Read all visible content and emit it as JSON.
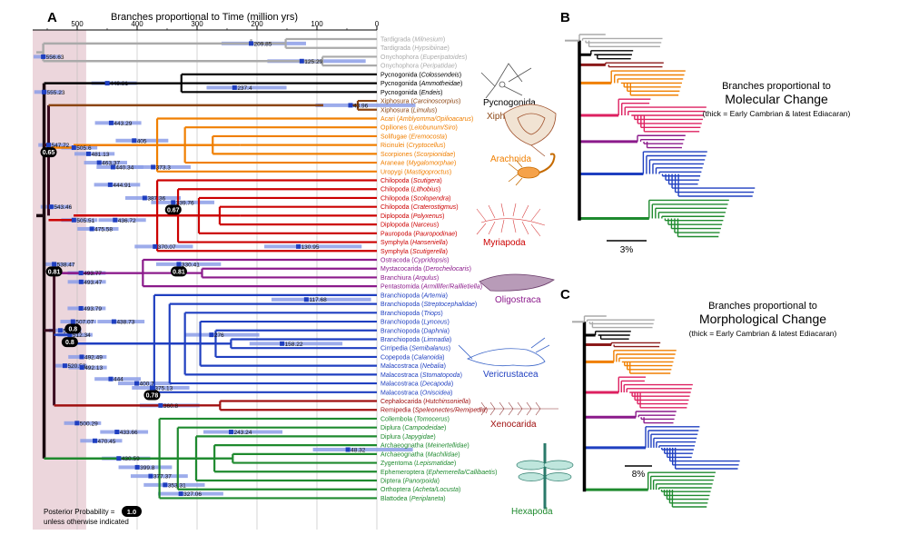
{
  "panel_a": {
    "letter": "A",
    "axis_title": "Branches proportional to Time (million yrs)",
    "ticks": [
      "500",
      "400",
      "300",
      "200",
      "100",
      "0"
    ],
    "taxa": [
      {
        "name": "Tardigrada",
        "genus": "Milnesium",
        "color": "#aaaaaa"
      },
      {
        "name": "Tardigrada",
        "genus": "Hypsibiinae",
        "color": "#aaaaaa"
      },
      {
        "name": "Onychophora",
        "genus": "Euperipatoides",
        "color": "#aaaaaa"
      },
      {
        "name": "Onychophora",
        "genus": "Peripatidae",
        "color": "#aaaaaa"
      },
      {
        "name": "Pycnogonida",
        "genus": "Colossendeis",
        "color": "#000000"
      },
      {
        "name": "Pycnogonida",
        "genus": "Ammotheidae",
        "color": "#000000"
      },
      {
        "name": "Pycnogonida",
        "genus": "Endeis",
        "color": "#000000"
      },
      {
        "name": "Xiphosura",
        "genus": "Carcinoscorpius",
        "color": "#8b4513"
      },
      {
        "name": "Xiphosura",
        "genus": "Limulus",
        "color": "#8b4513"
      },
      {
        "name": "Acari",
        "genus": "Amblyomma/Opilioacarus",
        "color": "#f07f00"
      },
      {
        "name": "Opiliones",
        "genus": "Leiobunum/Siro",
        "color": "#f07f00"
      },
      {
        "name": "Solifugae",
        "genus": "Eremocosta",
        "color": "#f07f00"
      },
      {
        "name": "Ricinulei",
        "genus": "Cryptocellus",
        "color": "#f07f00"
      },
      {
        "name": "Scorpiones",
        "genus": "Scorpionidae",
        "color": "#f07f00"
      },
      {
        "name": "Araneae",
        "genus": "Mygalomorphae",
        "color": "#f07f00"
      },
      {
        "name": "Uropygi",
        "genus": "Mastigoproctus",
        "color": "#f07f00"
      },
      {
        "name": "Chilopoda",
        "genus": "Scutigera",
        "color": "#cc0000"
      },
      {
        "name": "Chilopoda",
        "genus": "Lithobius",
        "color": "#cc0000"
      },
      {
        "name": "Chilopoda",
        "genus": "Scolopendra",
        "color": "#cc0000"
      },
      {
        "name": "Chilopoda",
        "genus": "Craterostigmus",
        "color": "#cc0000"
      },
      {
        "name": "Diplopoda",
        "genus": "Polyxenus",
        "color": "#cc0000"
      },
      {
        "name": "Diplopoda",
        "genus": "Narceus",
        "color": "#cc0000"
      },
      {
        "name": "Pauropoda",
        "genus": "Pauropodinae",
        "color": "#cc0000"
      },
      {
        "name": "Symphyla",
        "genus": "Hanseniella",
        "color": "#cc0000"
      },
      {
        "name": "Symphyla",
        "genus": "Scutigerella",
        "color": "#cc0000"
      },
      {
        "name": "Ostracoda",
        "genus": "Cypridopsis",
        "color": "#8b1a8b"
      },
      {
        "name": "Mystacocarida",
        "genus": "Derocheilocaris",
        "color": "#8b1a8b"
      },
      {
        "name": "Branchiura",
        "genus": "Argulus",
        "color": "#8b1a8b"
      },
      {
        "name": "Pentastomida",
        "genus": "Armillifer/Raillietiella",
        "color": "#8b1a8b"
      },
      {
        "name": "Branchiopoda",
        "genus": "Artemia",
        "color": "#1f3fc0"
      },
      {
        "name": "Branchiopoda",
        "genus": "Streptocephalidae",
        "color": "#1f3fc0"
      },
      {
        "name": "Branchiopoda",
        "genus": "Triops",
        "color": "#1f3fc0"
      },
      {
        "name": "Branchiopoda",
        "genus": "Lynceus",
        "color": "#1f3fc0"
      },
      {
        "name": "Branchiopoda",
        "genus": "Daphnia",
        "color": "#1f3fc0"
      },
      {
        "name": "Branchiopoda",
        "genus": "Limnadia",
        "color": "#1f3fc0"
      },
      {
        "name": "Cirripedia",
        "genus": "Semibalanus",
        "color": "#1f3fc0"
      },
      {
        "name": "Copepoda",
        "genus": "Calanoida",
        "color": "#1f3fc0"
      },
      {
        "name": "Malacostraca",
        "genus": "Nebalia",
        "color": "#1f3fc0"
      },
      {
        "name": "Malacostraca",
        "genus": "Stomatopoda",
        "color": "#1f3fc0"
      },
      {
        "name": "Malacostraca",
        "genus": "Decapoda",
        "color": "#1f3fc0"
      },
      {
        "name": "Malacostraca",
        "genus": "Oniscidea",
        "color": "#1f3fc0"
      },
      {
        "name": "Cephalocarida",
        "genus": "Hutchinsoniella",
        "color": "#a01010"
      },
      {
        "name": "Remipedia",
        "genus": "Speleonectes/Remipedia",
        "color": "#a01010"
      },
      {
        "name": "Collembola",
        "genus": "Tomocerus",
        "color": "#1e8a2e"
      },
      {
        "name": "Diplura",
        "genus": "Campodeidae",
        "color": "#1e8a2e"
      },
      {
        "name": "Diplura",
        "genus": "Japygidae",
        "color": "#1e8a2e"
      },
      {
        "name": "Archaeognatha",
        "genus": "Meinertellidae",
        "color": "#1e8a2e"
      },
      {
        "name": "Archaeognatha",
        "genus": "Machilidae",
        "color": "#1e8a2e"
      },
      {
        "name": "Zygentoma",
        "genus": "Lepismatidae",
        "color": "#1e8a2e"
      },
      {
        "name": "Ephemeroptera",
        "genus": "Ephemerella/Callibaetis",
        "color": "#1e8a2e"
      },
      {
        "name": "Diptera",
        "genus": "Panorpoida",
        "color": "#1e8a2e"
      },
      {
        "name": "Orthoptera",
        "genus": "Acheta/Locusta",
        "color": "#1e8a2e"
      },
      {
        "name": "Blattodea",
        "genus": "Periplaneta",
        "color": "#1e8a2e"
      }
    ],
    "nodes": [
      {
        "label": "556.63",
        "age": 556.63,
        "row": 2
      },
      {
        "label": "555.23",
        "age": 555.23,
        "row": 6
      },
      {
        "label": "547.72",
        "age": 547.72,
        "row": 12
      },
      {
        "label": "543.46",
        "age": 543.46,
        "row": 19
      },
      {
        "label": "538.47",
        "age": 538.47,
        "row": 25.5
      },
      {
        "label": "528.14",
        "age": 528.14,
        "row": 33
      },
      {
        "label": "520.53",
        "age": 520.53,
        "row": 37
      },
      {
        "label": "512.34",
        "age": 512.34,
        "row": 33.5
      },
      {
        "label": "507.07",
        "age": 507.07,
        "row": 32
      },
      {
        "label": "505.6",
        "age": 505.6,
        "row": 12.3
      },
      {
        "label": "505.51",
        "age": 505.51,
        "row": 20.5
      },
      {
        "label": "500.29",
        "age": 500.29,
        "row": 43.5
      },
      {
        "label": "493.79",
        "age": 493.79,
        "row": 30.5
      },
      {
        "label": "493.77",
        "age": 493.77,
        "row": 26.5
      },
      {
        "label": "493.47",
        "age": 493.47,
        "row": 27.5
      },
      {
        "label": "492.49",
        "age": 492.49,
        "row": 36
      },
      {
        "label": "492.13",
        "age": 492.13,
        "row": 37.2
      },
      {
        "label": "481.13",
        "age": 481.13,
        "row": 13
      },
      {
        "label": "475.58",
        "age": 475.58,
        "row": 21.5
      },
      {
        "label": "470.45",
        "age": 470.45,
        "row": 45.5
      },
      {
        "label": "463.37",
        "age": 463.37,
        "row": 14
      },
      {
        "label": "449.81",
        "age": 449.81,
        "row": 5
      },
      {
        "label": "444.91",
        "age": 444.91,
        "row": 16.5
      },
      {
        "label": "444",
        "age": 444,
        "row": 38.5
      },
      {
        "label": "443.29",
        "age": 443.29,
        "row": 9.5
      },
      {
        "label": "440.34",
        "age": 440.34,
        "row": 14.5
      },
      {
        "label": "438.73",
        "age": 438.73,
        "row": 32
      },
      {
        "label": "436.72",
        "age": 436.72,
        "row": 20.5
      },
      {
        "label": "433.66",
        "age": 433.66,
        "row": 44.5
      },
      {
        "label": "430.59",
        "age": 430.59,
        "row": 47.5
      },
      {
        "label": "405",
        "age": 405,
        "row": 11.5
      },
      {
        "label": "400.7",
        "age": 400.7,
        "row": 39
      },
      {
        "label": "399.8",
        "age": 399.8,
        "row": 48.5
      },
      {
        "label": "387.36",
        "age": 387.36,
        "row": 18
      },
      {
        "label": "377.37",
        "age": 377.37,
        "row": 49.5
      },
      {
        "label": "375.13",
        "age": 375.13,
        "row": 39.5
      },
      {
        "label": "373.3",
        "age": 373.3,
        "row": 14.5
      },
      {
        "label": "370.07",
        "age": 370.07,
        "row": 23.5
      },
      {
        "label": "360.8",
        "age": 360.8,
        "row": 41.5
      },
      {
        "label": "353.31",
        "age": 353.31,
        "row": 50.5
      },
      {
        "label": "339.76",
        "age": 339.76,
        "row": 18.5
      },
      {
        "label": "330.41",
        "age": 330.41,
        "row": 25.5
      },
      {
        "label": "327.06",
        "age": 327.06,
        "row": 51.5
      },
      {
        "label": "276",
        "age": 276,
        "row": 33.5
      },
      {
        "label": "243.24",
        "age": 243.24,
        "row": 44.5
      },
      {
        "label": "237.4",
        "age": 237.4,
        "row": 5.5
      },
      {
        "label": "209.85",
        "age": 209.85,
        "row": 0.5
      },
      {
        "label": "158.22",
        "age": 158.22,
        "row": 34.5
      },
      {
        "label": "130.95",
        "age": 130.95,
        "row": 23.5
      },
      {
        "label": "125.29",
        "age": 125.29,
        "row": 2.5
      },
      {
        "label": "117.68",
        "age": 117.68,
        "row": 29.5
      },
      {
        "label": "48.32",
        "age": 48.32,
        "row": 46.5
      },
      {
        "label": "43.96",
        "age": 43.96,
        "row": 7.5
      }
    ],
    "pp_badges": [
      {
        "label": "0.65",
        "age": 547.72
      },
      {
        "label": "0.67",
        "age": 339.76
      },
      {
        "label": "0.81",
        "age": 330.41
      },
      {
        "label": "0.81",
        "age": 538.47
      },
      {
        "label": "0.8",
        "age": 507.07
      },
      {
        "label": "0.8",
        "age": 512.34
      },
      {
        "label": "0.78",
        "age": 375.13
      }
    ],
    "group_labels": [
      {
        "name": "Pycnogonida",
        "color": "#000000"
      },
      {
        "name": "Xiphosura",
        "color": "#8b4513"
      },
      {
        "name": "Arachnida",
        "color": "#f07f00"
      },
      {
        "name": "Myriapoda",
        "color": "#cc0000"
      },
      {
        "name": "Oligostraca",
        "color": "#8b1a8b"
      },
      {
        "name": "Vericrustacea",
        "color": "#1f3fc0"
      },
      {
        "name": "Xenocarida",
        "color": "#a01010"
      },
      {
        "name": "Hexapoda",
        "color": "#1e8a2e"
      }
    ],
    "legend_line1": "Posterior Probability =",
    "legend_badge": "1.0",
    "legend_line2": "unless otherwise indicated"
  },
  "panel_b": {
    "letter": "B",
    "title_line1": "Branches proportional to",
    "title_line2": "Molecular Change",
    "title_line3": "(thick = Early Cambrian & latest Ediacaran)",
    "scale_label": "3%"
  },
  "panel_c": {
    "letter": "C",
    "title_line1": "Branches proportional to",
    "title_line2": "Morphological Change",
    "title_line3": "(thick = Early Cambrian & latest Ediacaran)",
    "scale_label": "8%"
  },
  "colors": {
    "cambrian_band": "#ecd6dc",
    "grid": "#bbbbbb",
    "hpd_bar": "#8c9ee8",
    "badge": "#000000"
  },
  "icons": [
    "pycnogonid-drawing-icon",
    "horseshoe-crab-drawing-icon",
    "scorpion-drawing-icon",
    "centipede-drawing-icon",
    "ostracod-drawing-icon",
    "crayfish-drawing-icon",
    "remipede-drawing-icon",
    "dragonfly-drawing-icon"
  ]
}
